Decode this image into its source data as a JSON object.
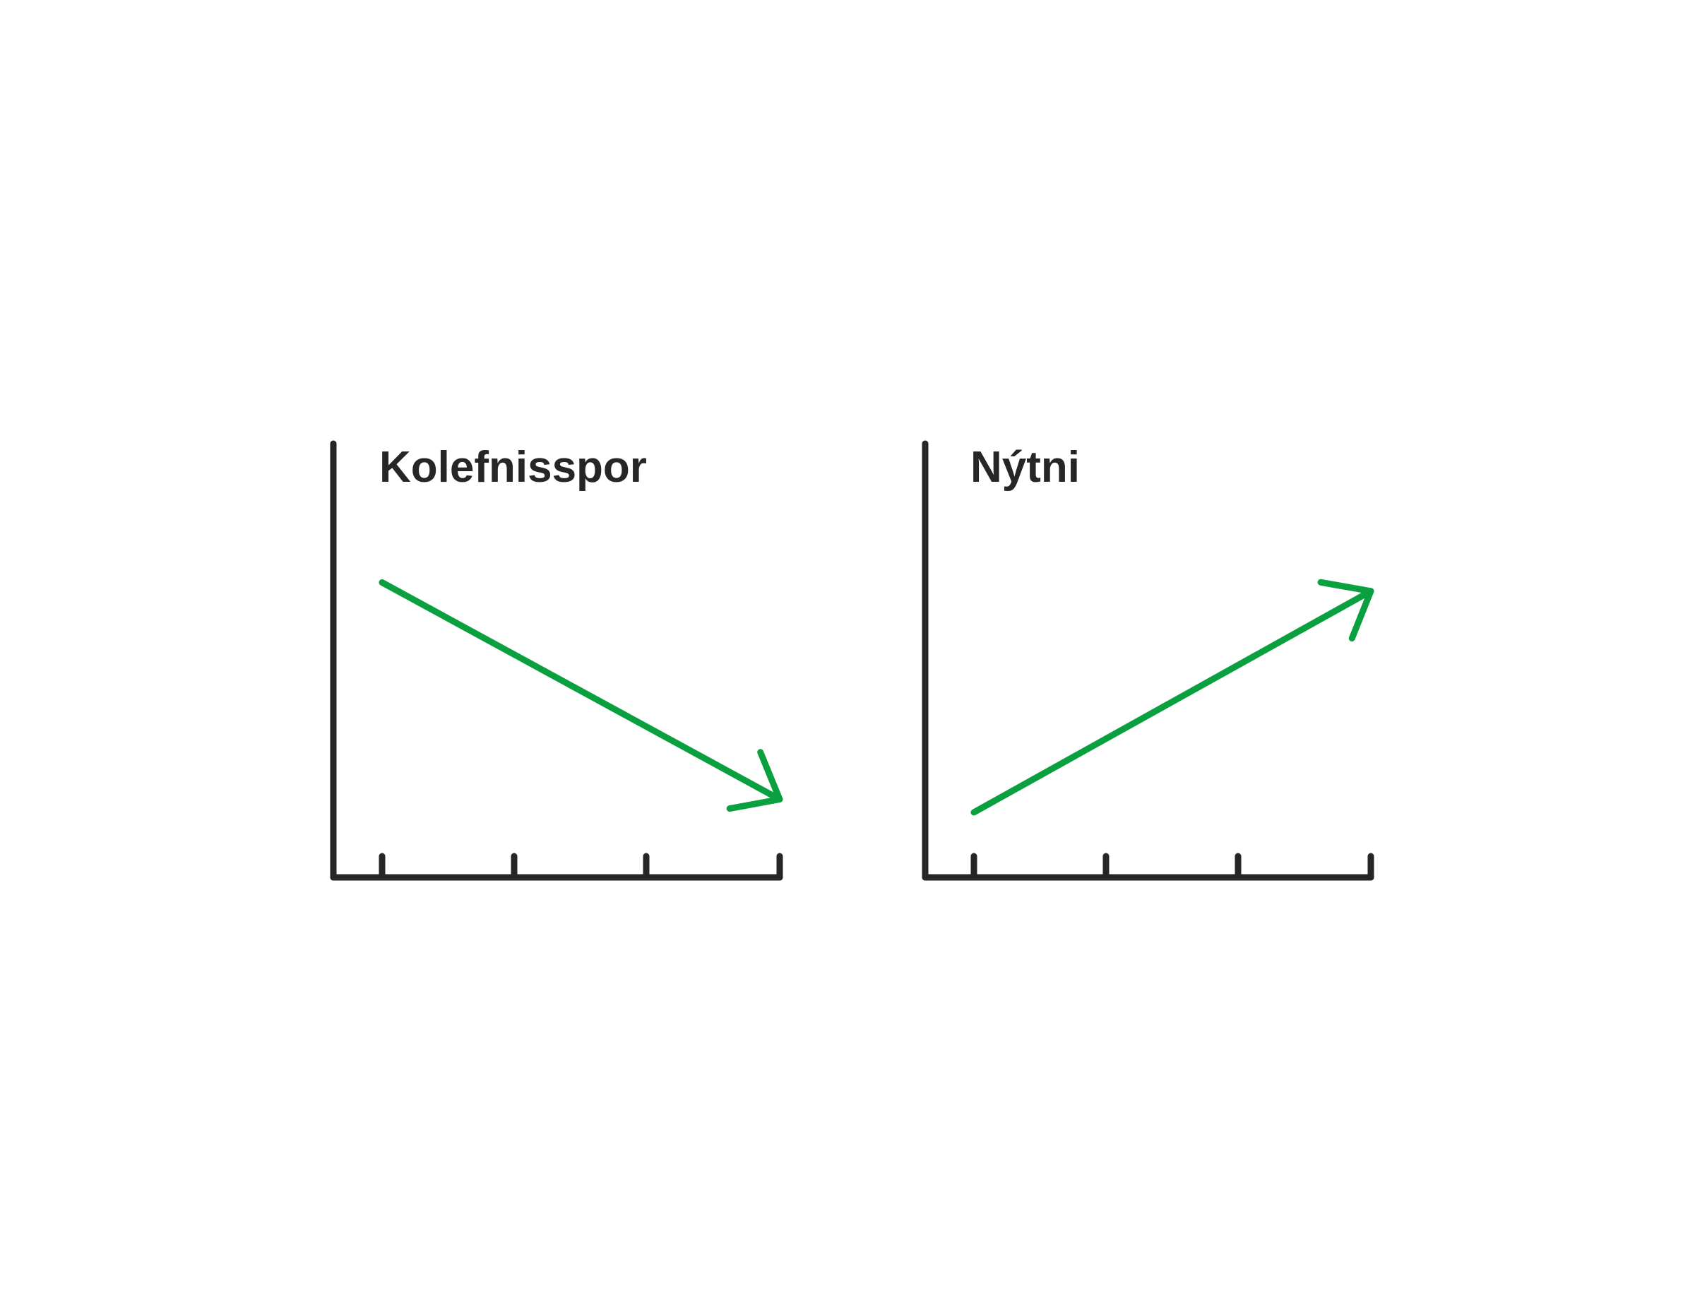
{
  "colors": {
    "background": "#ffffff",
    "axis": "#262626",
    "arrow": "#0aa040",
    "title": "#262626"
  },
  "chart_data": [
    {
      "type": "line",
      "title": "Kolefnisspor",
      "trend": "decreasing",
      "xlabel": "",
      "ylabel": "",
      "tick_count": 4,
      "xlim": [
        0,
        3
      ],
      "ylim": [
        0,
        10
      ],
      "series": [
        {
          "name": "trend",
          "x": [
            0,
            3
          ],
          "values": [
            6.8,
            1.8
          ],
          "arrow_end": true
        }
      ]
    },
    {
      "type": "line",
      "title": "Nýtni",
      "trend": "increasing",
      "xlabel": "",
      "ylabel": "",
      "tick_count": 4,
      "xlim": [
        0,
        3
      ],
      "ylim": [
        0,
        10
      ],
      "series": [
        {
          "name": "trend",
          "x": [
            0,
            3
          ],
          "values": [
            1.5,
            6.6
          ],
          "arrow_end": true
        }
      ]
    }
  ]
}
